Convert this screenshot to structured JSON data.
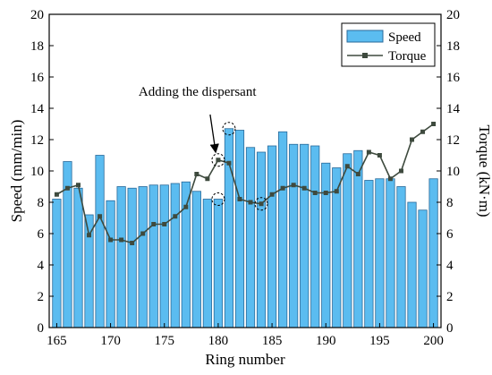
{
  "chart_data": {
    "type": "bar+line",
    "xlabel": "Ring number",
    "ylabel_left": "Speed (mm/min)",
    "ylabel_right": "Torque (kN·m)",
    "x_ticks": [
      165,
      170,
      175,
      180,
      185,
      190,
      195,
      200
    ],
    "y_ticks": [
      0,
      2,
      4,
      6,
      8,
      10,
      12,
      14,
      16,
      18,
      20
    ],
    "xlim": [
      164.3,
      200.7
    ],
    "ylim_left": [
      0,
      20
    ],
    "ylim_right": [
      0,
      20
    ],
    "grid": false,
    "legend_position": "top-right",
    "colors": {
      "bar_fill": "#5BBCF0",
      "bar_stroke": "#2A6A9A",
      "line": "#3E4A3E",
      "marker": "#3E4A3E"
    },
    "x": [
      165,
      166,
      167,
      168,
      169,
      170,
      171,
      172,
      173,
      174,
      175,
      176,
      177,
      178,
      179,
      180,
      181,
      182,
      183,
      184,
      185,
      186,
      187,
      188,
      189,
      190,
      191,
      192,
      193,
      194,
      195,
      196,
      197,
      198,
      199,
      200
    ],
    "series": [
      {
        "name": "Speed",
        "kind": "bar",
        "axis": "left",
        "values": [
          8.2,
          10.6,
          8.9,
          7.2,
          11.0,
          8.1,
          9.0,
          8.9,
          9.0,
          9.1,
          9.1,
          9.2,
          9.3,
          8.7,
          8.2,
          8.2,
          12.7,
          12.6,
          11.5,
          11.2,
          11.6,
          12.5,
          11.7,
          11.7,
          11.6,
          10.5,
          10.2,
          11.1,
          11.3,
          9.4,
          9.5,
          9.5,
          9.0,
          8.0,
          7.5,
          9.5
        ]
      },
      {
        "name": "Torque",
        "kind": "line",
        "axis": "right",
        "values": [
          8.5,
          8.9,
          9.1,
          5.9,
          7.1,
          5.6,
          5.6,
          5.4,
          6.0,
          6.6,
          6.6,
          7.1,
          7.7,
          9.8,
          9.5,
          10.7,
          10.5,
          8.2,
          8.0,
          7.9,
          8.5,
          8.9,
          9.1,
          8.9,
          8.6,
          8.6,
          8.7,
          10.3,
          9.8,
          11.2,
          11.0,
          9.5,
          10.0,
          12.0,
          12.5,
          13.0
        ]
      }
    ],
    "annotations": [
      {
        "text": "Adding the dispersant",
        "target_x": 180,
        "target_value": 10.7,
        "axis": "right"
      }
    ],
    "highlight_circles": [
      {
        "x": 180,
        "value": 10.7,
        "axis": "right"
      },
      {
        "x": 180,
        "value": 8.2,
        "axis": "left"
      },
      {
        "x": 181,
        "value": 12.7,
        "axis": "left"
      },
      {
        "x": 184,
        "value": 7.9,
        "axis": "right"
      }
    ]
  }
}
